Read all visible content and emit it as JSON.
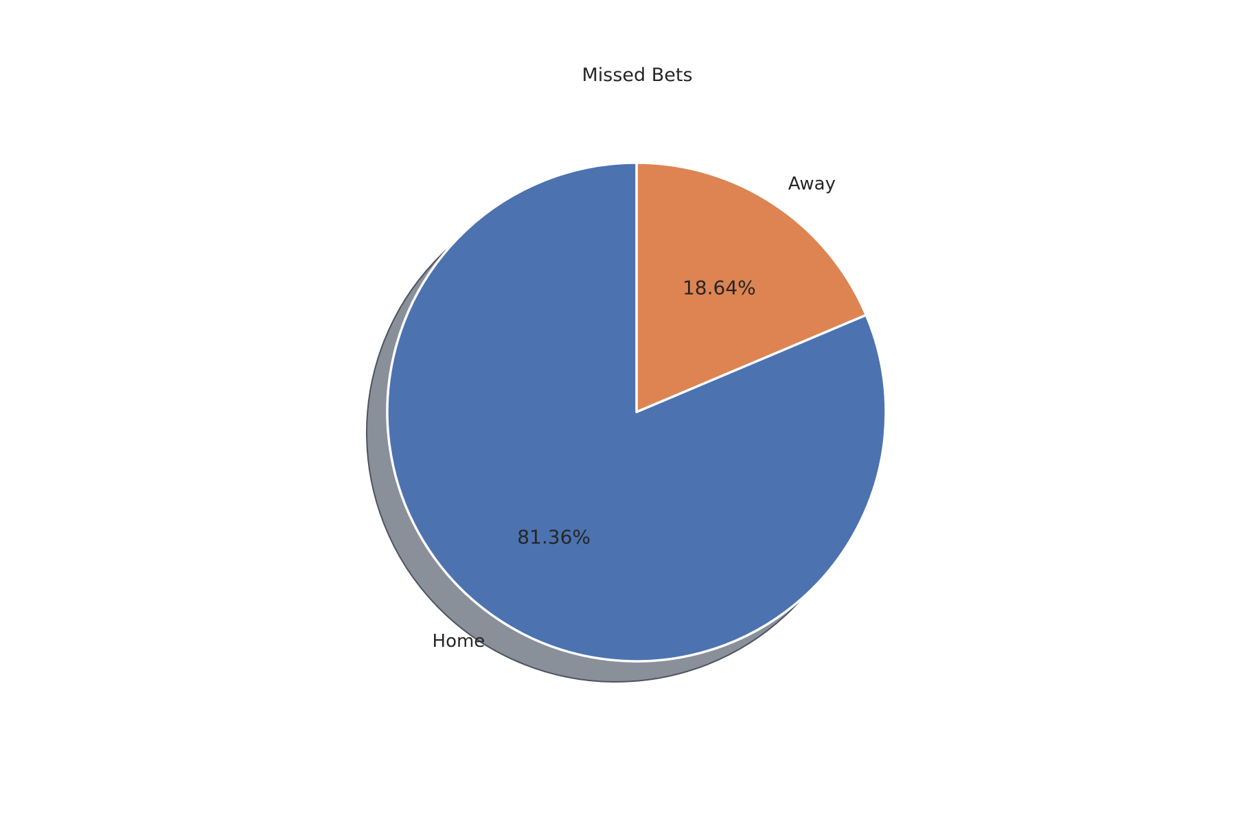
{
  "chart_data": {
    "type": "pie",
    "title": "Missed Bets",
    "categories": [
      "Home",
      "Away"
    ],
    "values": [
      81.36,
      18.64
    ],
    "value_labels": [
      "81.36%",
      "18.64%"
    ],
    "colors": [
      "#4c72b0",
      "#dd8452"
    ],
    "shadow": true,
    "shadow_color": "#8a9099",
    "edge_color": "#ffffff",
    "start": "top",
    "direction": "clockwise"
  }
}
